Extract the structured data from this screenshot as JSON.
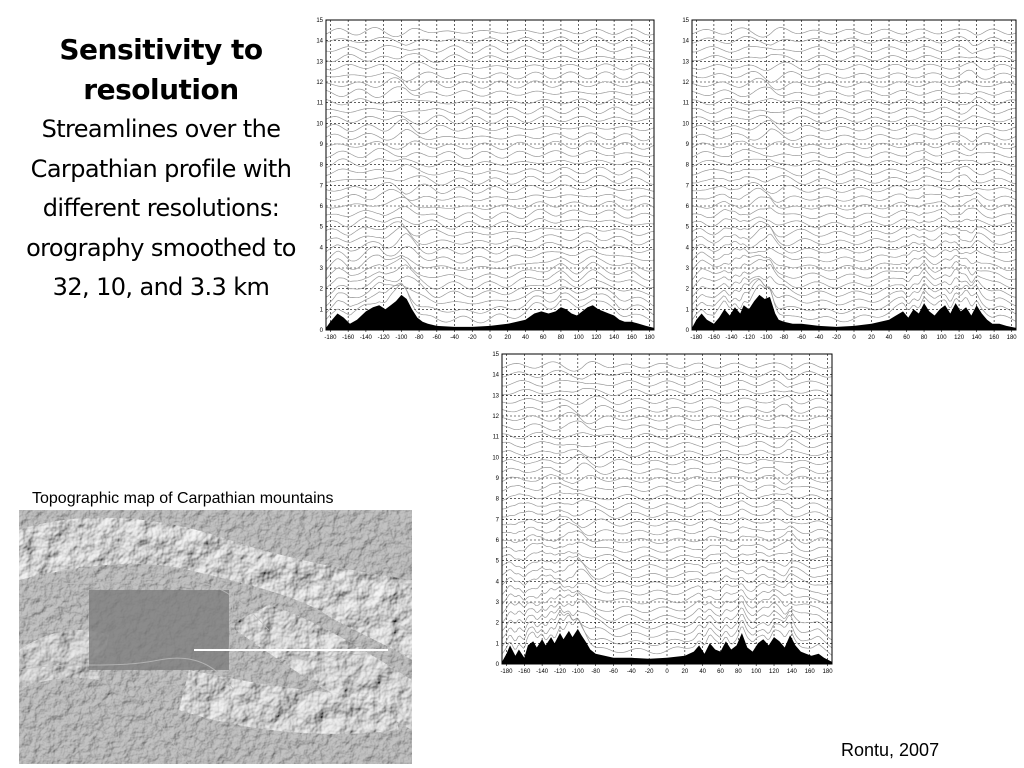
{
  "title": "Sensitivity to resolution",
  "subtitle_lines": [
    "Streamlines over the",
    "Carpathian profile with",
    "different resolutions:",
    "orography smoothed to",
    "32, 10, and 3.3 km"
  ],
  "map_caption": "Topographic map of Carpathian mountains",
  "credit": "Rontu, 2007",
  "chart_data": [
    {
      "type": "line",
      "title": "",
      "x_ticks": [
        "-180",
        "-160",
        "-140",
        "-120",
        "-100",
        "-80",
        "-60",
        "-40",
        "-20",
        "0",
        "20",
        "40",
        "60",
        "80",
        "100",
        "120",
        "140",
        "160",
        "180"
      ],
      "y_ticks": [
        "0",
        "1",
        "2",
        "3",
        "4",
        "5",
        "6",
        "7",
        "8",
        "9",
        "10",
        "11",
        "12",
        "13",
        "14",
        "15"
      ],
      "xlim": [
        -185,
        185
      ],
      "ylim": [
        0,
        15
      ],
      "grid": true,
      "orography": {
        "x": [
          -185,
          -180,
          -172,
          -165,
          -158,
          -150,
          -140,
          -132,
          -125,
          -118,
          -112,
          -106,
          -100,
          -94,
          -88,
          -82,
          -76,
          -70,
          -60,
          -40,
          -20,
          0,
          20,
          40,
          50,
          58,
          66,
          74,
          80,
          86,
          92,
          98,
          104,
          110,
          116,
          122,
          128,
          134,
          140,
          146,
          152,
          160,
          168,
          176,
          185
        ],
        "y": [
          0.1,
          0.4,
          0.8,
          0.6,
          0.3,
          0.5,
          0.9,
          1.1,
          1.2,
          1.0,
          1.2,
          1.4,
          1.7,
          1.5,
          1.0,
          0.6,
          0.4,
          0.3,
          0.2,
          0.15,
          0.15,
          0.2,
          0.3,
          0.5,
          0.8,
          0.9,
          0.8,
          0.9,
          1.1,
          1.0,
          0.8,
          0.7,
          0.9,
          1.1,
          1.2,
          1.0,
          0.9,
          0.8,
          0.7,
          0.5,
          0.4,
          0.4,
          0.3,
          0.2,
          0.1
        ]
      }
    },
    {
      "type": "line",
      "title": "",
      "x_ticks": [
        "-180",
        "-160",
        "-140",
        "-120",
        "-100",
        "-80",
        "-60",
        "-40",
        "-20",
        "0",
        "20",
        "40",
        "60",
        "80",
        "100",
        "120",
        "140",
        "160",
        "180"
      ],
      "y_ticks": [
        "0",
        "1",
        "2",
        "3",
        "4",
        "5",
        "6",
        "7",
        "8",
        "9",
        "10",
        "11",
        "12",
        "13",
        "14",
        "15"
      ],
      "xlim": [
        -185,
        185
      ],
      "ylim": [
        0,
        15
      ],
      "grid": true,
      "orography": {
        "x": [
          -185,
          -180,
          -174,
          -168,
          -160,
          -154,
          -148,
          -142,
          -136,
          -130,
          -126,
          -120,
          -114,
          -108,
          -102,
          -96,
          -90,
          -86,
          -80,
          -70,
          -60,
          -40,
          -20,
          0,
          20,
          30,
          40,
          48,
          56,
          62,
          68,
          74,
          80,
          86,
          92,
          98,
          104,
          110,
          116,
          122,
          128,
          134,
          140,
          146,
          152,
          158,
          166,
          174,
          185
        ],
        "y": [
          0.1,
          0.5,
          0.8,
          0.5,
          0.3,
          0.6,
          1.0,
          0.7,
          1.1,
          0.8,
          1.2,
          1.0,
          1.4,
          1.7,
          1.5,
          1.6,
          0.8,
          0.5,
          0.4,
          0.3,
          0.3,
          0.2,
          0.15,
          0.2,
          0.3,
          0.4,
          0.5,
          0.7,
          0.9,
          0.6,
          1.0,
          0.8,
          1.3,
          0.9,
          0.7,
          1.0,
          1.2,
          0.8,
          1.3,
          0.9,
          1.1,
          0.7,
          1.2,
          0.8,
          0.5,
          0.3,
          0.3,
          0.2,
          0.1
        ]
      }
    },
    {
      "type": "line",
      "title": "",
      "x_ticks": [
        "-180",
        "-160",
        "-140",
        "-120",
        "-100",
        "-80",
        "-60",
        "-40",
        "-20",
        "0",
        "20",
        "40",
        "60",
        "80",
        "100",
        "120",
        "140",
        "160",
        "180"
      ],
      "y_ticks": [
        "0",
        "1",
        "2",
        "3",
        "4",
        "5",
        "6",
        "7",
        "8",
        "9",
        "10",
        "11",
        "12",
        "13",
        "14",
        "15"
      ],
      "xlim": [
        -185,
        185
      ],
      "ylim": [
        0,
        15
      ],
      "grid": true,
      "orography": {
        "x": [
          -185,
          -180,
          -176,
          -170,
          -166,
          -160,
          -156,
          -150,
          -146,
          -140,
          -136,
          -130,
          -126,
          -120,
          -116,
          -110,
          -106,
          -100,
          -96,
          -90,
          -86,
          -80,
          -70,
          -60,
          -40,
          -20,
          0,
          20,
          30,
          36,
          42,
          48,
          54,
          60,
          66,
          72,
          78,
          84,
          90,
          96,
          102,
          108,
          114,
          120,
          126,
          132,
          138,
          144,
          150,
          156,
          162,
          170,
          176,
          185
        ],
        "y": [
          0.1,
          0.5,
          0.9,
          0.4,
          0.7,
          0.3,
          0.9,
          1.1,
          0.8,
          1.2,
          0.9,
          1.3,
          1.0,
          1.5,
          1.2,
          1.6,
          1.3,
          1.7,
          1.4,
          1.0,
          0.7,
          0.5,
          0.4,
          0.3,
          0.3,
          0.25,
          0.3,
          0.4,
          0.6,
          0.9,
          0.5,
          1.0,
          0.7,
          0.6,
          1.1,
          0.7,
          0.9,
          1.5,
          0.8,
          0.6,
          1.0,
          1.2,
          0.9,
          1.3,
          1.1,
          0.8,
          1.4,
          0.9,
          0.6,
          0.5,
          0.4,
          0.5,
          0.3,
          0.1
        ]
      }
    }
  ],
  "colors": {
    "streamline": "#9a9a9a",
    "grid": "#000000",
    "orography": "#000000",
    "map_base": "#7b7b7b",
    "profile_line": "#ffffff"
  }
}
